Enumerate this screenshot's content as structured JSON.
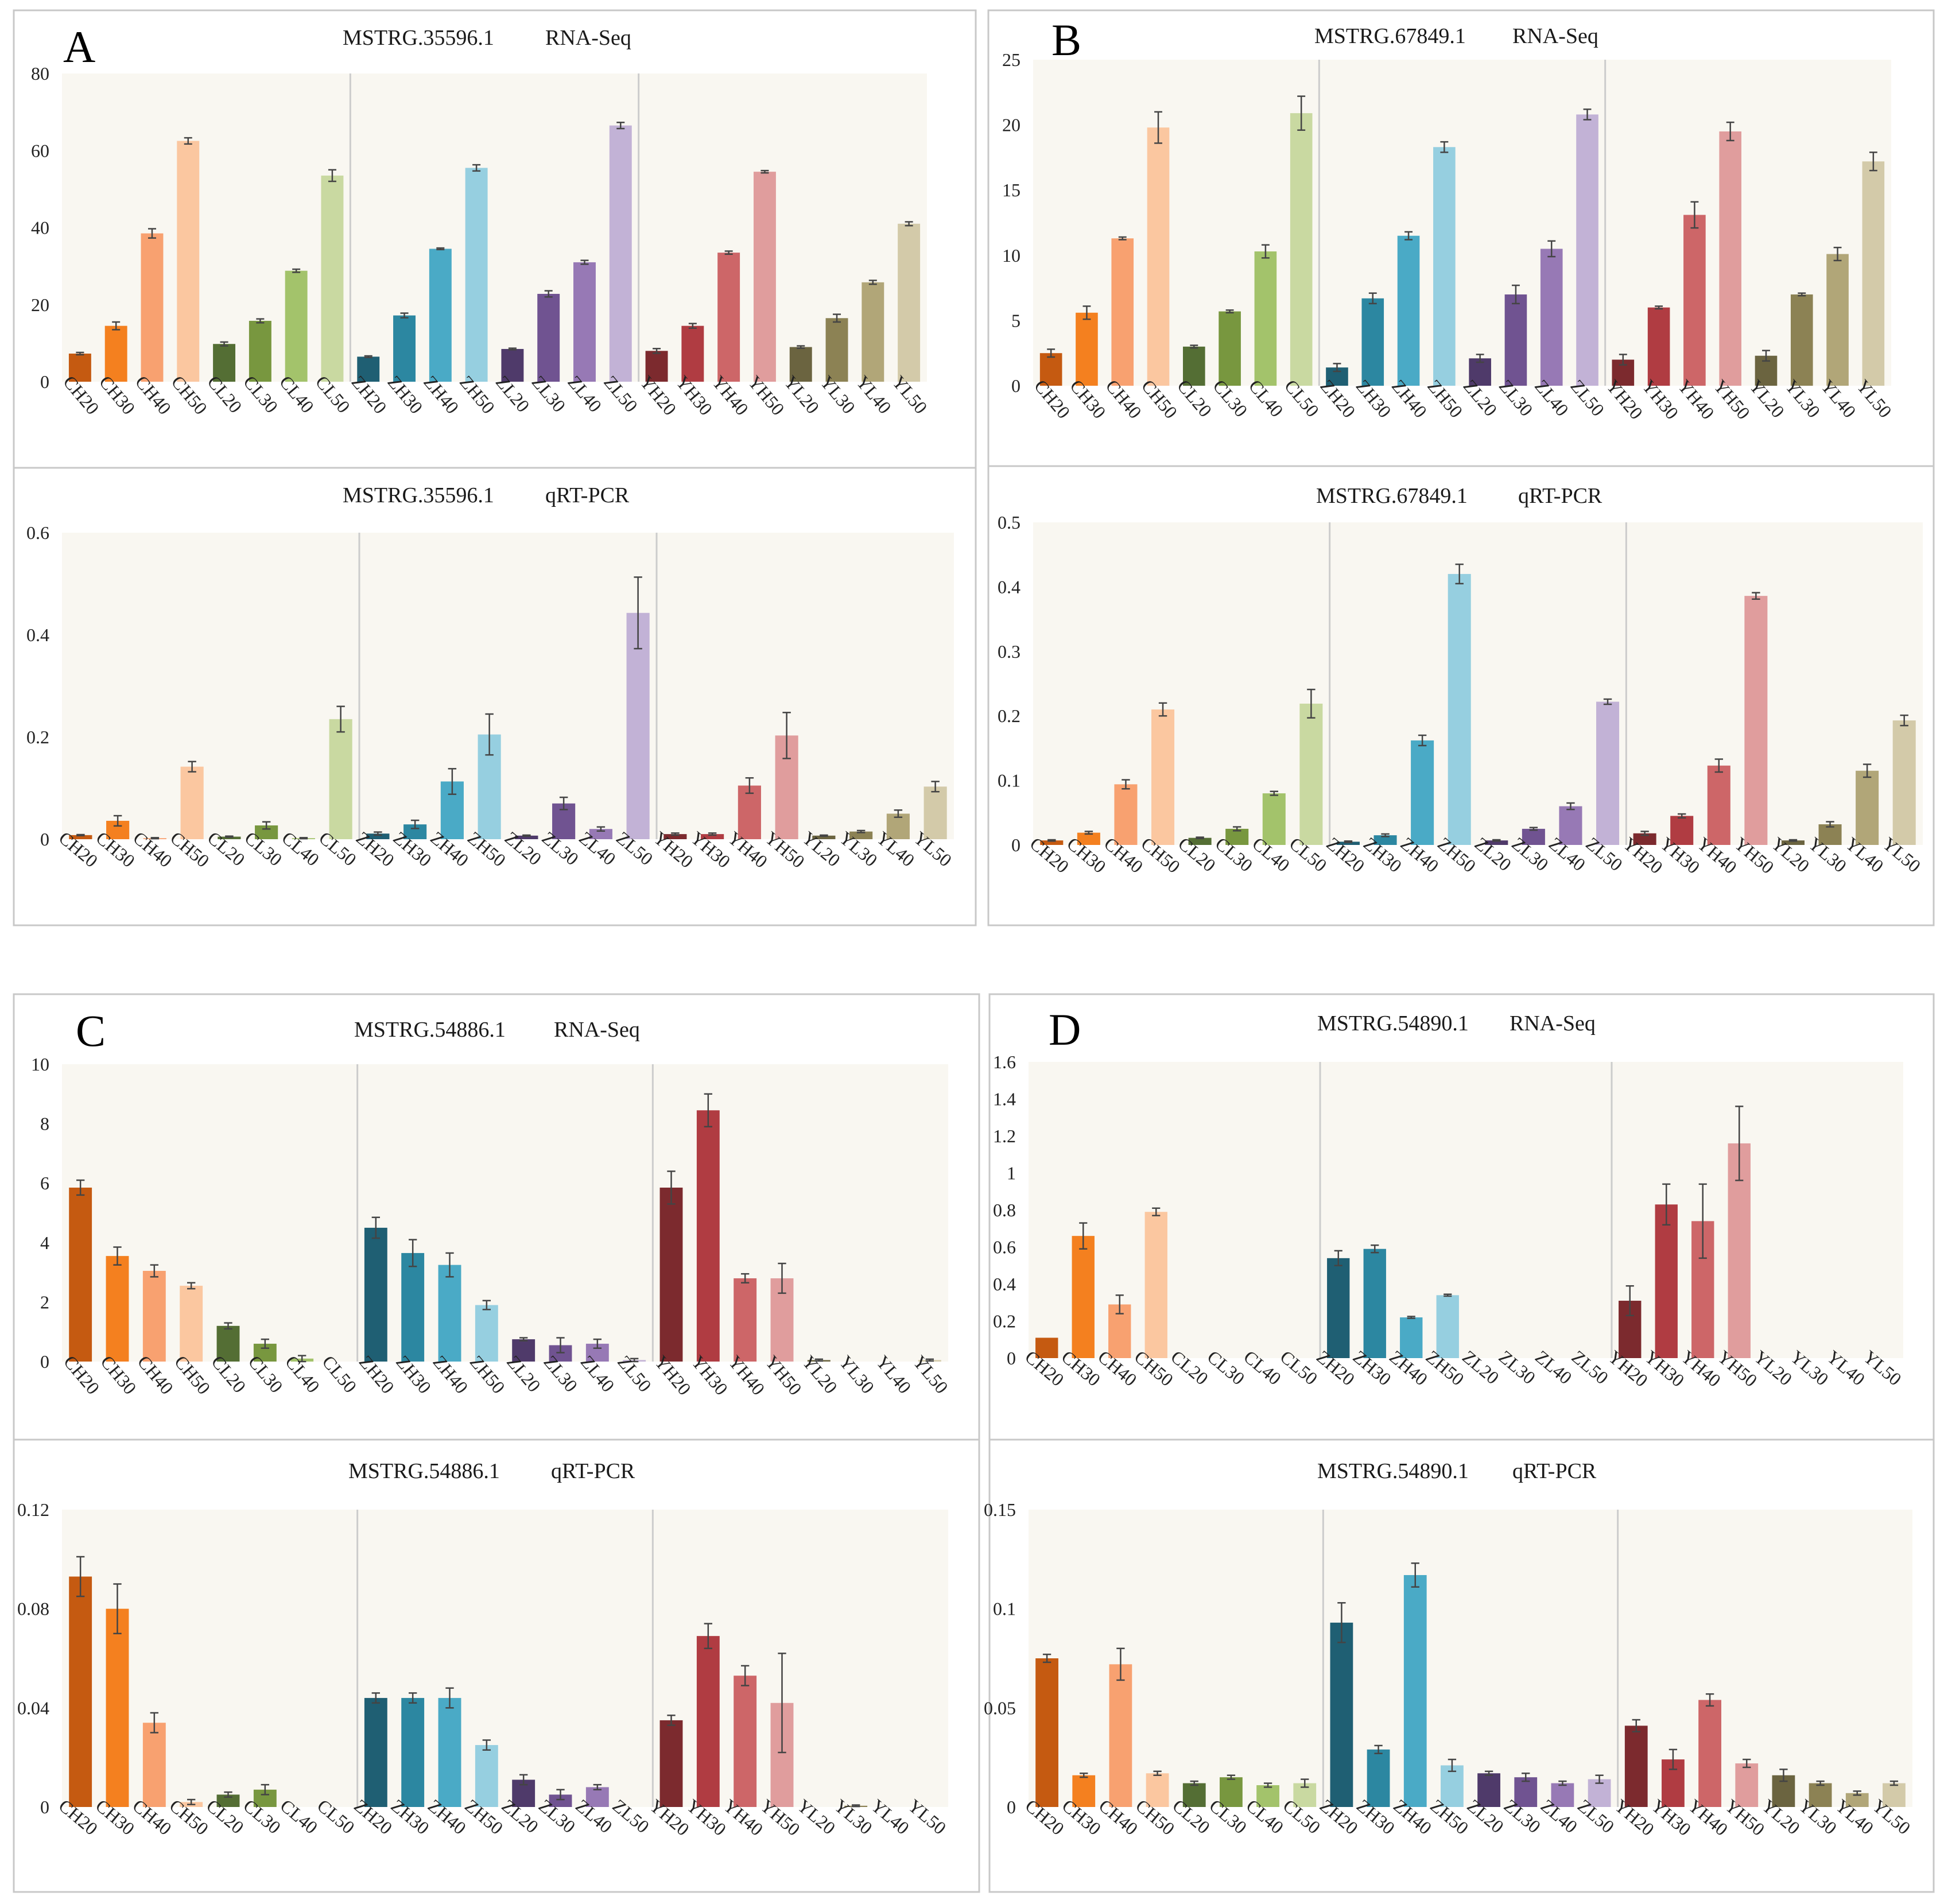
{
  "colors": {
    "CH20": "#c55a11",
    "CH30": "#f4801f",
    "CH40": "#f8a170",
    "CH50": "#fbc7a0",
    "CL20": "#546e34",
    "CL30": "#78973f",
    "CL40": "#a3c36b",
    "CL50": "#c9d9a1",
    "ZH20": "#1f5f73",
    "ZH30": "#2c87a1",
    "ZH40": "#4aaac6",
    "ZH50": "#96cfe0",
    "ZL20": "#4f3a6a",
    "ZL30": "#705391",
    "ZL40": "#9779b5",
    "ZL50": "#c2b2d6",
    "YH20": "#7c2a2e",
    "YH30": "#b03c42",
    "YH40": "#cd6668",
    "YH50": "#e09d9d",
    "YL20": "#6b6440",
    "YL30": "#8c8254",
    "YL40": "#b1a678",
    "YL50": "#d3caa9"
  },
  "chart_data": [
    {
      "id": "A1",
      "letter": "A",
      "type": "bar",
      "gene": "MSTRG.35596.1",
      "method": "RNA-Seq",
      "categories": [
        "CH20",
        "CH30",
        "CH40",
        "CH50",
        "CL20",
        "CL30",
        "CL40",
        "CL50",
        "ZH20",
        "ZH30",
        "ZH40",
        "ZH50",
        "ZL20",
        "ZL30",
        "ZL40",
        "ZL50",
        "YH20",
        "YH30",
        "YH40",
        "YH50",
        "YL20",
        "YL30",
        "YL40",
        "YL50"
      ],
      "values": [
        7.3,
        14.5,
        38.5,
        62.5,
        9.8,
        15.8,
        28.8,
        53.5,
        6.5,
        17.2,
        34.5,
        55.5,
        8.5,
        22.8,
        31.0,
        66.5,
        8.0,
        14.5,
        33.5,
        54.5,
        9.0,
        16.5,
        25.8,
        41.0
      ],
      "errors": [
        0.3,
        1.0,
        1.2,
        0.8,
        0.5,
        0.5,
        0.4,
        1.5,
        0.2,
        0.6,
        0.2,
        0.8,
        0.2,
        0.8,
        0.5,
        0.8,
        0.6,
        0.6,
        0.4,
        0.3,
        0.3,
        1.0,
        0.5,
        0.5
      ],
      "ylim": [
        0,
        80
      ],
      "yticks": [
        "0",
        "20",
        "40",
        "60",
        "80"
      ],
      "xlabel_rotation": 50
    },
    {
      "id": "A2",
      "type": "bar",
      "gene": "MSTRG.35596.1",
      "method": "qRT-PCR",
      "categories": [
        "CH20",
        "CH30",
        "CH40",
        "CH50",
        "CL20",
        "CL30",
        "CL40",
        "CL50",
        "ZH20",
        "ZH30",
        "ZH40",
        "ZH50",
        "ZL20",
        "ZL30",
        "ZL40",
        "ZL50",
        "YH20",
        "YH30",
        "YH40",
        "YH50",
        "YL20",
        "YL30",
        "YL40",
        "YL50"
      ],
      "values": [
        0.008,
        0.036,
        0.002,
        0.142,
        0.005,
        0.027,
        0.002,
        0.235,
        0.011,
        0.029,
        0.113,
        0.205,
        0.007,
        0.07,
        0.02,
        0.443,
        0.01,
        0.01,
        0.105,
        0.203,
        0.007,
        0.015,
        0.05,
        0.103
      ],
      "errors": [
        0.001,
        0.01,
        0.001,
        0.01,
        0.001,
        0.007,
        0.001,
        0.025,
        0.003,
        0.008,
        0.025,
        0.04,
        0.001,
        0.012,
        0.004,
        0.07,
        0.002,
        0.002,
        0.015,
        0.045,
        0.001,
        0.002,
        0.007,
        0.01
      ],
      "ylim": [
        0,
        0.6
      ],
      "yticks": [
        "0",
        "0.2",
        "0.4",
        "0.6"
      ],
      "xlabel_rotation": 40
    },
    {
      "id": "B1",
      "letter": "B",
      "type": "bar",
      "gene": "MSTRG.67849.1",
      "method": "RNA-Seq",
      "categories": [
        "CH20",
        "CH30",
        "CH40",
        "CH50",
        "CL20",
        "CL30",
        "CL40",
        "CL50",
        "ZH20",
        "ZH30",
        "ZH40",
        "ZH50",
        "ZL20",
        "ZL30",
        "ZL40",
        "ZL50",
        "YH20",
        "YH30",
        "YH40",
        "YH50",
        "YL20",
        "YL30",
        "YL40",
        "YL50"
      ],
      "values": [
        2.5,
        5.6,
        11.3,
        19.8,
        3.0,
        5.7,
        10.3,
        20.9,
        1.4,
        6.7,
        11.5,
        18.3,
        2.1,
        7.0,
        10.5,
        20.8,
        2.0,
        6.0,
        13.1,
        19.5,
        2.3,
        7.0,
        10.1,
        17.2
      ],
      "errors": [
        0.3,
        0.5,
        0.1,
        1.2,
        0.1,
        0.1,
        0.5,
        1.3,
        0.3,
        0.4,
        0.3,
        0.4,
        0.3,
        0.7,
        0.6,
        0.4,
        0.4,
        0.1,
        1.0,
        0.7,
        0.4,
        0.1,
        0.5,
        0.7
      ],
      "ylim": [
        0,
        25
      ],
      "yticks": [
        "0",
        "5",
        "10",
        "15",
        "20",
        "25"
      ],
      "xlabel_rotation": 50
    },
    {
      "id": "B2",
      "type": "bar",
      "gene": "MSTRG.67849.1",
      "method": "qRT-PCR",
      "categories": [
        "CH20",
        "CH30",
        "CH40",
        "CH50",
        "CL20",
        "CL30",
        "CL40",
        "CL50",
        "ZH20",
        "ZH30",
        "ZH40",
        "ZH50",
        "ZL20",
        "ZL30",
        "ZL40",
        "ZL50",
        "YH20",
        "YH30",
        "YH40",
        "YH50",
        "YL20",
        "YL30",
        "YL40",
        "YL50"
      ],
      "values": [
        0.007,
        0.019,
        0.094,
        0.21,
        0.011,
        0.025,
        0.08,
        0.219,
        0.005,
        0.015,
        0.162,
        0.42,
        0.007,
        0.025,
        0.06,
        0.222,
        0.018,
        0.045,
        0.123,
        0.386,
        0.007,
        0.032,
        0.115,
        0.193
      ],
      "errors": [
        0.001,
        0.002,
        0.007,
        0.01,
        0.001,
        0.003,
        0.003,
        0.022,
        0.001,
        0.002,
        0.008,
        0.015,
        0.001,
        0.002,
        0.005,
        0.004,
        0.003,
        0.003,
        0.01,
        0.005,
        0.001,
        0.004,
        0.01,
        0.008
      ],
      "ylim": [
        0,
        0.5
      ],
      "yticks": [
        "0",
        "0.1",
        "0.2",
        "0.3",
        "0.4",
        "0.5"
      ],
      "xlabel_rotation": 40
    },
    {
      "id": "C1",
      "letter": "C",
      "type": "bar",
      "gene": "MSTRG.54886.1",
      "method": "RNA-Seq",
      "categories": [
        "CH20",
        "CH30",
        "CH40",
        "CH50",
        "CL20",
        "CL30",
        "CL40",
        "CL50",
        "ZH20",
        "ZH30",
        "ZH40",
        "ZH50",
        "ZL20",
        "ZL30",
        "ZL40",
        "ZL50",
        "YH20",
        "YH30",
        "YH40",
        "YH50",
        "YL20",
        "YL30",
        "YL40",
        "YL50"
      ],
      "values": [
        5.85,
        3.55,
        3.05,
        2.55,
        1.2,
        0.6,
        0.1,
        0.0,
        4.5,
        3.65,
        3.25,
        1.9,
        0.75,
        0.55,
        0.6,
        0.05,
        5.85,
        8.45,
        2.8,
        2.8,
        0.05,
        0.0,
        0.0,
        0.05
      ],
      "errors": [
        0.25,
        0.3,
        0.2,
        0.1,
        0.1,
        0.15,
        0.1,
        0.0,
        0.35,
        0.45,
        0.4,
        0.15,
        0.05,
        0.25,
        0.15,
        0.05,
        0.55,
        0.55,
        0.15,
        0.5,
        0.03,
        0.0,
        0.0,
        0.03
      ],
      "ylim": [
        0,
        10
      ],
      "yticks": [
        "0",
        "2",
        "4",
        "6",
        "8",
        "10"
      ],
      "xlabel_rotation": 50
    },
    {
      "id": "C2",
      "type": "bar",
      "gene": "MSTRG.54886.1",
      "method": "qRT-PCR",
      "categories": [
        "CH20",
        "CH30",
        "CH40",
        "CH50",
        "CL20",
        "CL30",
        "CL40",
        "CL50",
        "ZH20",
        "ZH30",
        "ZH40",
        "ZH50",
        "ZL20",
        "ZL30",
        "ZL40",
        "ZL50",
        "YH20",
        "YH30",
        "YH40",
        "YH50",
        "YL20",
        "YL30",
        "YL40",
        "YL50"
      ],
      "values": [
        0.093,
        0.08,
        0.034,
        0.002,
        0.005,
        0.007,
        0.0,
        0.0,
        0.044,
        0.044,
        0.044,
        0.025,
        0.011,
        0.005,
        0.008,
        0.0,
        0.035,
        0.069,
        0.053,
        0.042,
        0.0,
        0.0005,
        0.0,
        0.0
      ],
      "errors": [
        0.008,
        0.01,
        0.004,
        0.001,
        0.001,
        0.002,
        0.0005,
        0.0,
        0.002,
        0.002,
        0.004,
        0.002,
        0.002,
        0.002,
        0.001,
        0.0,
        0.002,
        0.005,
        0.004,
        0.02,
        0.0003,
        0.0003,
        0.0003,
        0.0003
      ],
      "ylim": [
        0,
        0.12
      ],
      "yticks": [
        "0",
        "0.04",
        "0.08",
        "0.12"
      ],
      "xlabel_rotation": 40
    },
    {
      "id": "D1",
      "letter": "D",
      "type": "bar",
      "gene": "MSTRG.54890.1",
      "method": "RNA-Seq",
      "categories": [
        "CH20",
        "CH30",
        "CH40",
        "CH50",
        "CL20",
        "CL30",
        "CL40",
        "CL50",
        "ZH20",
        "ZH30",
        "ZH40",
        "ZH50",
        "ZL20",
        "ZL30",
        "ZL40",
        "ZL50",
        "YH20",
        "YH30",
        "YH40",
        "YH50",
        "YL20",
        "YL30",
        "YL40",
        "YL50"
      ],
      "values": [
        0.11,
        0.66,
        0.29,
        0.79,
        0,
        0,
        0,
        0,
        0.54,
        0.59,
        0.22,
        0.34,
        0,
        0,
        0,
        0,
        0.31,
        0.83,
        0.74,
        1.16,
        0,
        0,
        0,
        0
      ],
      "errors": [
        0.0,
        0.07,
        0.05,
        0.02,
        0,
        0,
        0,
        0,
        0.04,
        0.02,
        0.005,
        0.005,
        0,
        0,
        0,
        0,
        0.08,
        0.11,
        0.2,
        0.2,
        0,
        0,
        0,
        0
      ],
      "ylim": [
        0,
        1.6
      ],
      "yticks": [
        "0",
        "0.2",
        "0.4",
        "0.6",
        "0.8",
        "1",
        "1.2",
        "1.4",
        "1.6"
      ],
      "xlabel_rotation": 40
    },
    {
      "id": "D2",
      "type": "bar",
      "gene": "MSTRG.54890.1",
      "method": "qRT-PCR",
      "categories": [
        "CH20",
        "CH30",
        "CH40",
        "CH50",
        "CL20",
        "CL30",
        "CL40",
        "CL50",
        "ZH20",
        "ZH30",
        "ZH40",
        "ZH50",
        "ZL20",
        "ZL30",
        "ZL40",
        "ZL50",
        "YH20",
        "YH30",
        "YH40",
        "YH50",
        "YL20",
        "YL30",
        "YL40",
        "YL50"
      ],
      "values": [
        0.075,
        0.016,
        0.072,
        0.017,
        0.012,
        0.015,
        0.011,
        0.012,
        0.093,
        0.029,
        0.117,
        0.021,
        0.017,
        0.015,
        0.012,
        0.014,
        0.041,
        0.024,
        0.054,
        0.022,
        0.016,
        0.012,
        0.007,
        0.012
      ],
      "errors": [
        0.002,
        0.001,
        0.008,
        0.001,
        0.001,
        0.001,
        0.001,
        0.002,
        0.01,
        0.002,
        0.006,
        0.003,
        0.001,
        0.002,
        0.001,
        0.002,
        0.003,
        0.005,
        0.003,
        0.002,
        0.003,
        0.001,
        0.001,
        0.001
      ],
      "ylim": [
        0,
        0.15
      ],
      "yticks": [
        "0",
        "0.05",
        "0.1",
        "0.15"
      ],
      "xlabel_rotation": 40
    }
  ]
}
